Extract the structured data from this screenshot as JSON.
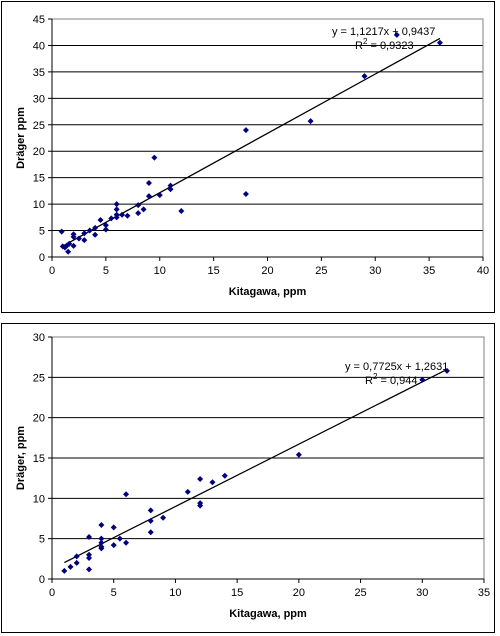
{
  "chart_data": [
    {
      "type": "scatter",
      "xlabel": "Kitagawa, ppm",
      "ylabel": "Dräger ppm",
      "xlim": [
        0,
        40
      ],
      "ylim": [
        0,
        45
      ],
      "x_ticks": [
        0,
        5,
        10,
        15,
        20,
        25,
        30,
        35,
        40
      ],
      "y_ticks": [
        0,
        5,
        10,
        15,
        20,
        25,
        30,
        35,
        40,
        45
      ],
      "grid": "horizontal",
      "legend": "none",
      "marker_color": "#000080",
      "points": [
        [
          0.9,
          4.8
        ],
        [
          1.0,
          2.0
        ],
        [
          1.2,
          1.8
        ],
        [
          1.4,
          2.2
        ],
        [
          1.5,
          1.0
        ],
        [
          1.6,
          2.5
        ],
        [
          2.0,
          3.8
        ],
        [
          2.0,
          4.3
        ],
        [
          2.0,
          2.1
        ],
        [
          2.5,
          3.5
        ],
        [
          3.0,
          4.5
        ],
        [
          3.0,
          3.2
        ],
        [
          3.5,
          5.0
        ],
        [
          4.0,
          5.5
        ],
        [
          4.0,
          4.2
        ],
        [
          4.5,
          7.0
        ],
        [
          5.0,
          6.0
        ],
        [
          5.0,
          5.2
        ],
        [
          5.5,
          7.3
        ],
        [
          6.0,
          8.0
        ],
        [
          6.0,
          9.0
        ],
        [
          6.0,
          10.0
        ],
        [
          6.0,
          7.5
        ],
        [
          6.5,
          8.0
        ],
        [
          7.0,
          7.8
        ],
        [
          8.0,
          9.8
        ],
        [
          8.0,
          8.3
        ],
        [
          8.5,
          9.0
        ],
        [
          9.0,
          14.0
        ],
        [
          9.0,
          11.5
        ],
        [
          9.5,
          18.8
        ],
        [
          10.0,
          11.7
        ],
        [
          11.0,
          13.5
        ],
        [
          11.0,
          12.8
        ],
        [
          12.0,
          8.7
        ],
        [
          18.0,
          24.0
        ],
        [
          18.0,
          11.9
        ],
        [
          24.0,
          25.7
        ],
        [
          29.0,
          34.2
        ],
        [
          32.0,
          42.0
        ],
        [
          36.0,
          40.5
        ]
      ],
      "trendline": {
        "slope": 1.1217,
        "intercept": 0.9437,
        "x_range": [
          1,
          36
        ]
      },
      "annotations": {
        "equation": "y = 1,1217x + 0,9437",
        "r2_prefix": "R",
        "r2_sup": "2",
        "r2_value": " = 0,9323"
      }
    },
    {
      "type": "scatter",
      "xlabel": "Kitagawa, ppm",
      "ylabel": "Dräger, ppm",
      "xlim": [
        0,
        35
      ],
      "ylim": [
        0,
        30
      ],
      "x_ticks": [
        0,
        5,
        10,
        15,
        20,
        25,
        30,
        35
      ],
      "y_ticks": [
        0,
        5,
        10,
        15,
        20,
        25,
        30
      ],
      "grid": "horizontal",
      "legend": "none",
      "marker_color": "#000080",
      "points": [
        [
          1.0,
          1.0
        ],
        [
          1.5,
          1.5
        ],
        [
          2.0,
          2.0
        ],
        [
          2.0,
          2.8
        ],
        [
          3.0,
          3.0
        ],
        [
          3.0,
          5.2
        ],
        [
          3.0,
          1.2
        ],
        [
          3.0,
          2.6
        ],
        [
          4.0,
          6.7
        ],
        [
          4.0,
          5.0
        ],
        [
          4.0,
          4.5
        ],
        [
          4.0,
          4.0
        ],
        [
          4.0,
          3.8
        ],
        [
          5.0,
          6.4
        ],
        [
          5.0,
          4.2
        ],
        [
          5.5,
          5.0
        ],
        [
          6.0,
          10.5
        ],
        [
          6.0,
          4.5
        ],
        [
          8.0,
          8.5
        ],
        [
          8.0,
          7.2
        ],
        [
          8.0,
          5.8
        ],
        [
          9.0,
          7.6
        ],
        [
          11.0,
          10.8
        ],
        [
          12.0,
          12.4
        ],
        [
          12.0,
          9.4
        ],
        [
          12.0,
          9.1
        ],
        [
          13.0,
          12.0
        ],
        [
          14.0,
          12.8
        ],
        [
          20.0,
          15.4
        ],
        [
          30.0,
          24.7
        ],
        [
          32.0,
          25.8
        ]
      ],
      "trendline": {
        "slope": 0.7725,
        "intercept": 1.2631,
        "x_range": [
          1,
          32
        ]
      },
      "annotations": {
        "equation": "y = 0,7725x + 1,2631",
        "r2_prefix": "R",
        "r2_sup": "2",
        "r2_value": " = 0,944"
      }
    }
  ]
}
